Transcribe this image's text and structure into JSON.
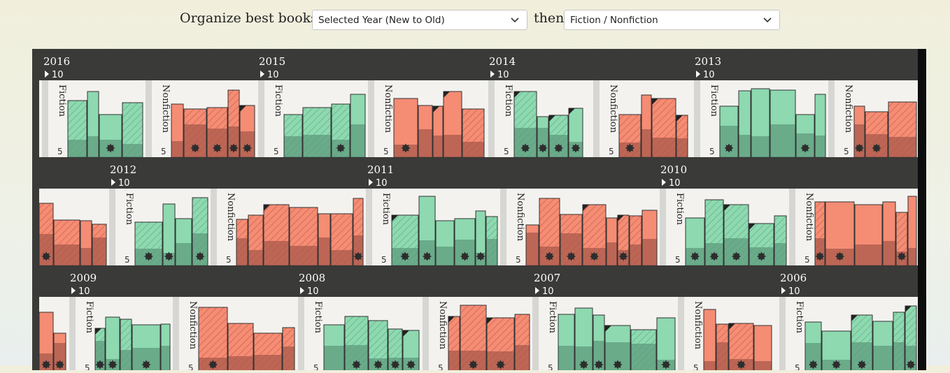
{
  "toolbar": {
    "organize_label": "Organize best books by",
    "then_label": "then",
    "primary_select": "Selected Year (New to Old)",
    "secondary_select": "Fiction / Nonfiction"
  },
  "colors": {
    "fiction": "#8ed9b0",
    "nonfiction": "#f58c74",
    "shelf": "#3a3a38",
    "shelf_bg": "#f3f2ef"
  },
  "legend_marks": {
    "scale_top": "10",
    "scale_mid": "5"
  },
  "shelves": [
    {
      "years": [
        {
          "year": "2016",
          "count": "10"
        },
        {
          "year": "2015",
          "count": "10"
        },
        {
          "year": "2014",
          "count": "10"
        },
        {
          "year": "2013",
          "count": "10"
        }
      ]
    },
    {
      "years": [
        {
          "year": "2012",
          "count": "10"
        },
        {
          "year": "2011",
          "count": "10"
        },
        {
          "year": "2010",
          "count": "10"
        }
      ]
    },
    {
      "years": [
        {
          "year": "2009",
          "count": "10"
        },
        {
          "year": "2008",
          "count": "10"
        },
        {
          "year": "2007",
          "count": "10"
        },
        {
          "year": "2006",
          "count": "10"
        }
      ]
    }
  ],
  "category_labels": {
    "fiction": "Fiction",
    "nonfiction": "Nonfiction"
  }
}
